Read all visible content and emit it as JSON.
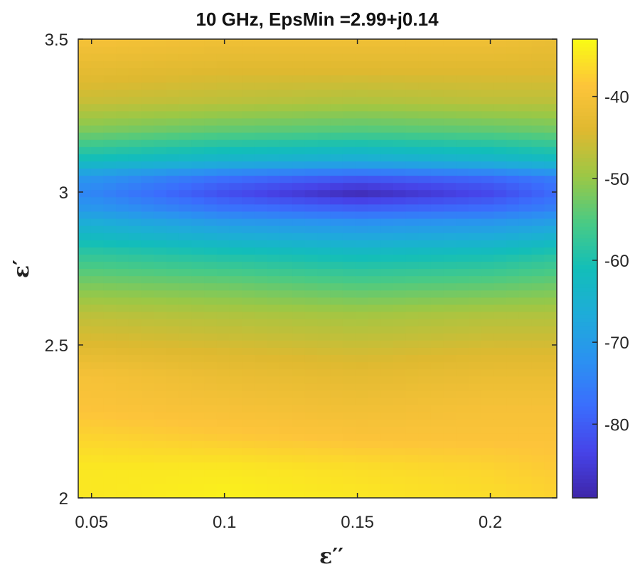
{
  "chart_data": {
    "type": "heatmap",
    "title": "10 GHz, EpsMin =2.99+j0.14",
    "xlabel": "ε′′",
    "ylabel": "ε′",
    "xlim": [
      0.045,
      0.225
    ],
    "ylim": [
      2,
      3.5
    ],
    "x_ticks": [
      0.05,
      0.1,
      0.15,
      0.2
    ],
    "x_tick_labels": [
      "0.05",
      "0.1",
      "0.15",
      "0.2"
    ],
    "y_ticks": [
      2,
      2.5,
      3,
      3.5
    ],
    "y_tick_labels": [
      "2",
      "2.5",
      "3",
      "3.5"
    ],
    "colorbar": {
      "range": [
        -89,
        -33
      ],
      "ticks": [
        -80,
        -70,
        -60,
        -50,
        -40
      ],
      "tick_labels": [
        "-80",
        "-70",
        "-60",
        "-50",
        "-40"
      ],
      "colormap": "parula"
    },
    "minimum": {
      "x": 0.14,
      "y": 2.99
    },
    "y": [
      2.0,
      2.1,
      2.2,
      2.3,
      2.4,
      2.5,
      2.6,
      2.7,
      2.8,
      2.9,
      2.95,
      3.0,
      3.05,
      3.1,
      3.2,
      3.3,
      3.4,
      3.5
    ],
    "x": [
      0.05,
      0.1,
      0.15,
      0.2,
      0.225
    ],
    "values": [
      [
        -35,
        -34,
        -35,
        -36,
        -37
      ],
      [
        -35,
        -35,
        -36,
        -37,
        -38
      ],
      [
        -37,
        -38,
        -39,
        -39,
        -39
      ],
      [
        -39,
        -40,
        -41,
        -40,
        -40
      ],
      [
        -40,
        -42,
        -43,
        -42,
        -42
      ],
      [
        -44,
        -45,
        -46,
        -45,
        -45
      ],
      [
        -47,
        -48,
        -49,
        -48,
        -48
      ],
      [
        -52,
        -53,
        -55,
        -54,
        -53
      ],
      [
        -58,
        -60,
        -62,
        -61,
        -59
      ],
      [
        -66,
        -70,
        -72,
        -71,
        -69
      ],
      [
        -71,
        -77,
        -80,
        -78,
        -75
      ],
      [
        -74,
        -82,
        -88,
        -83,
        -78
      ],
      [
        -71,
        -77,
        -80,
        -78,
        -75
      ],
      [
        -62,
        -65,
        -67,
        -65,
        -63
      ],
      [
        -52,
        -54,
        -55,
        -54,
        -53
      ],
      [
        -46,
        -47,
        -48,
        -47,
        -47
      ],
      [
        -43,
        -44,
        -44,
        -44,
        -44
      ],
      [
        -40,
        -41,
        -41,
        -41,
        -42
      ]
    ]
  }
}
